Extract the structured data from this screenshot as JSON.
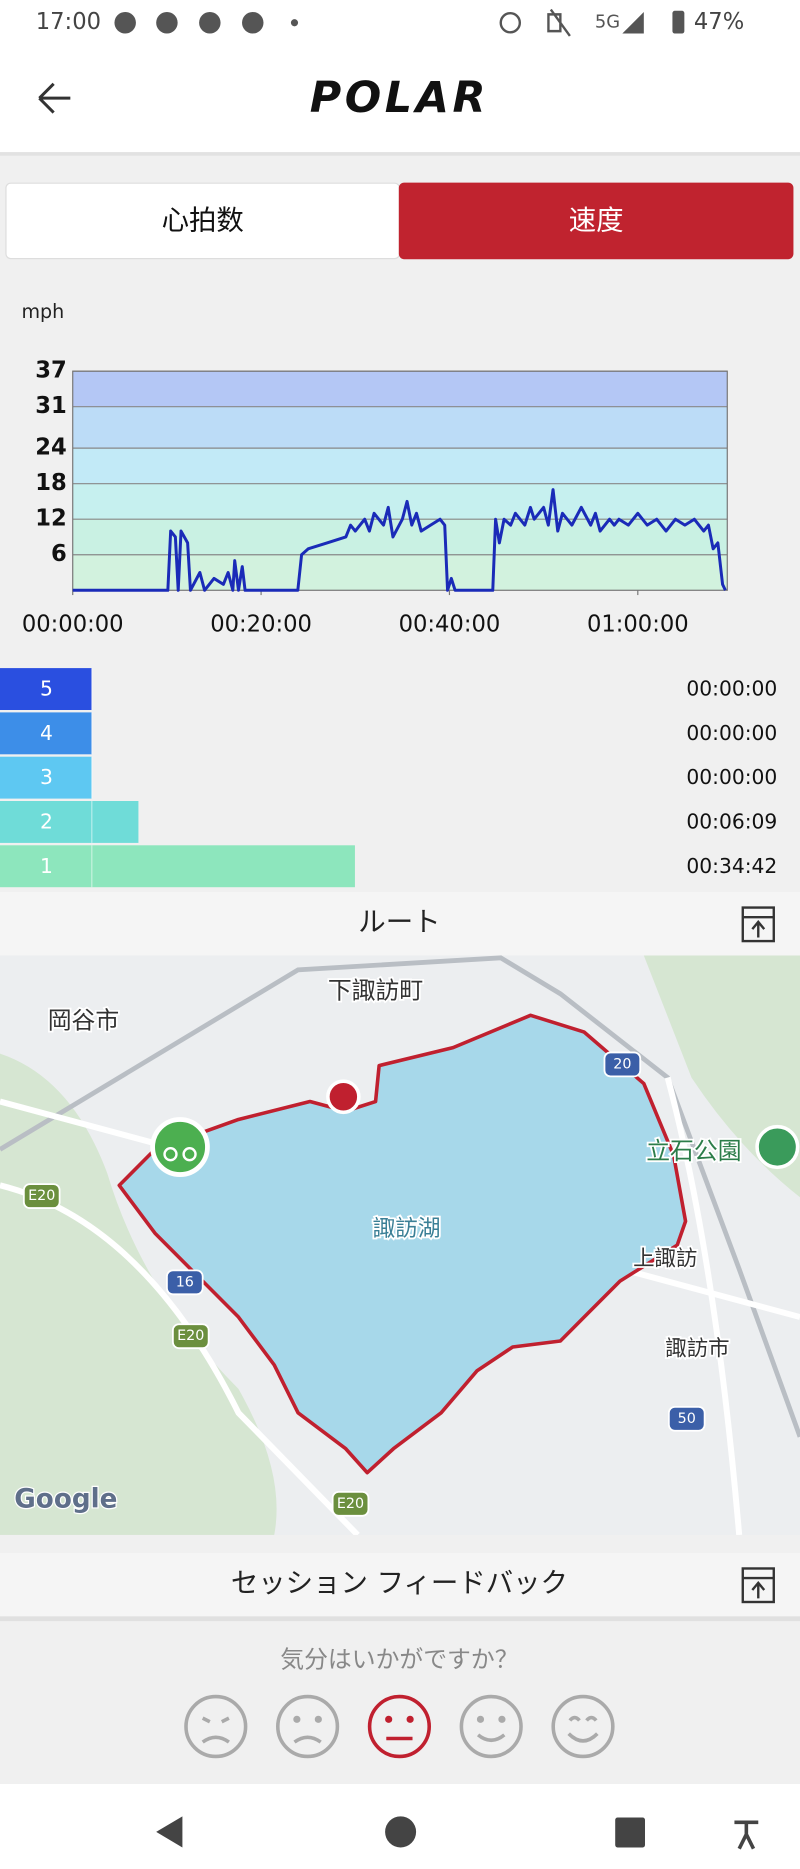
{
  "status_bar": {
    "time": "17:00",
    "network": "5G",
    "battery": "47%"
  },
  "header": {
    "logo": "POLAR"
  },
  "tabs": {
    "items": [
      "心拍数",
      "速度"
    ],
    "active": 1,
    "active_color": "#c0232f"
  },
  "speed_chart": {
    "type": "line",
    "y_label": "mph",
    "x": [
      0,
      10.1,
      10.4,
      10.9,
      11.2,
      11.5,
      12.2,
      12.5,
      13.5,
      14,
      15,
      16,
      16.5,
      17,
      17.2,
      17.6,
      18,
      18.3,
      23.9,
      24.3,
      25,
      27,
      29,
      29.5,
      30,
      31,
      31.5,
      32,
      33,
      33.5,
      34,
      35,
      35.5,
      36,
      36.5,
      37,
      38,
      39,
      39.5,
      39.8,
      40.2,
      40.6,
      44.6,
      44.9,
      45.3,
      45.8,
      46.5,
      47,
      48,
      48.6,
      49,
      50,
      50.5,
      51,
      51.5,
      52,
      53,
      54,
      55,
      55.5,
      56,
      57,
      57.5,
      58,
      59,
      60,
      61,
      62,
      63,
      64,
      65,
      66,
      67,
      67.5,
      68,
      68.5,
      69,
      69.3
    ],
    "series": [
      {
        "color": "#1a2bb8",
        "values": [
          0,
          0,
          10,
          9,
          0,
          10,
          8,
          0,
          3,
          0,
          2,
          1,
          3,
          0,
          5,
          0,
          4,
          0,
          0,
          6,
          7,
          8,
          9,
          11,
          10,
          12,
          10,
          13,
          11,
          14,
          9,
          12,
          15,
          11,
          13,
          10,
          11,
          12,
          11,
          0,
          2,
          0,
          0,
          12,
          8,
          12,
          11,
          13,
          11,
          14,
          12,
          14,
          11,
          17,
          10,
          13,
          11,
          14,
          11,
          13,
          10,
          12,
          11,
          12,
          11,
          13,
          11,
          12,
          10,
          12,
          11,
          12,
          10,
          11,
          7,
          8,
          1,
          0
        ]
      }
    ],
    "xlim": [
      0,
      69.5
    ],
    "ylim": [
      0,
      37
    ],
    "yticks": [
      6,
      12,
      18,
      24,
      31,
      37
    ],
    "xticks": [
      {
        "value": 0,
        "label": "00:00:00"
      },
      {
        "value": 20,
        "label": "00:20:00"
      },
      {
        "value": 40,
        "label": "00:40:00"
      },
      {
        "value": 60,
        "label": "01:00:00"
      }
    ],
    "band_colors": [
      "#d2f2de",
      "#c9f1e3",
      "#c6f0ef",
      "#c2eaf7",
      "#bcdcf7",
      "#b4c7f5"
    ],
    "grid": true
  },
  "zones": [
    {
      "label": "5",
      "time": "00:00:00",
      "color": "#2a4fe0"
    },
    {
      "label": "4",
      "time": "00:00:00",
      "color": "#3d8ee8"
    },
    {
      "label": "3",
      "time": "00:00:00",
      "color": "#5ec8f2"
    },
    {
      "label": "2",
      "time": "00:06:09",
      "color": "#6fdcd8"
    },
    {
      "label": "1",
      "time": "00:34:42",
      "color": "#8de6bd"
    }
  ],
  "route": {
    "title": "ルート",
    "places": [
      "岡谷市",
      "下諏訪町",
      "諏訪湖",
      "立石公園",
      "上諏訪",
      "諏訪市"
    ],
    "road_signs": [
      "20",
      "16",
      "E20",
      "E20",
      "50",
      "E20"
    ],
    "attribution": "Google"
  },
  "feedback": {
    "title": "セッション フィードバック",
    "question": "気分はいかがですか？"
  }
}
